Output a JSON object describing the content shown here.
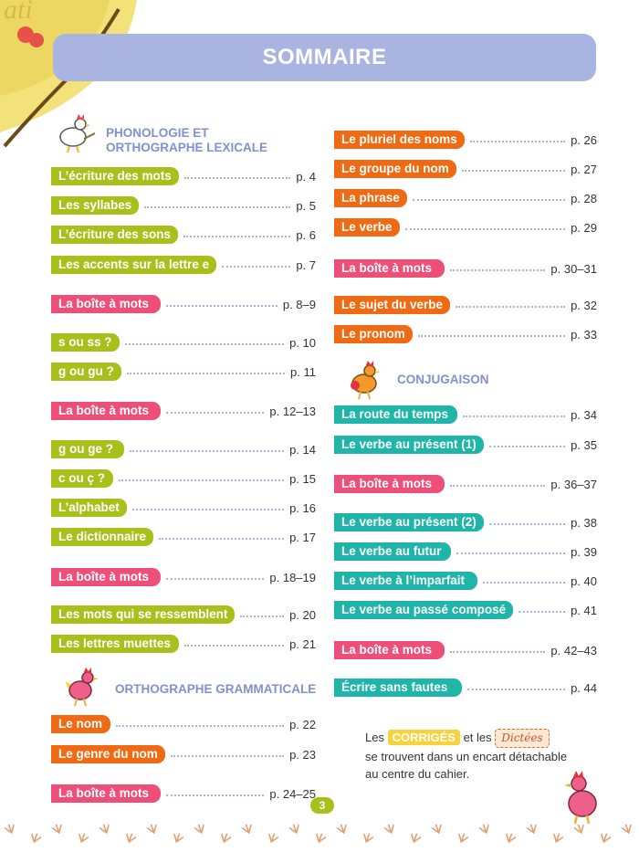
{
  "header": {
    "title": "SOMMAIRE"
  },
  "colors": {
    "green": "#a9bf1b",
    "pink": "#ee4f79",
    "orange": "#ef6a12",
    "teal": "#1fb5a9",
    "banner": "#aab4e0",
    "section_title": "#8190cf"
  },
  "sections": {
    "phonologie": {
      "line1": "PHONOLOGIE ET",
      "line2": "ORTHOGRAPHE LEXICALE",
      "icon": "rooster-icon"
    },
    "orthographe_grammaticale": {
      "title": "ORTHOGRAPHE GRAMMATICALE",
      "icon": "hen-icon"
    },
    "conjugaison": {
      "title": "CONJUGAISON",
      "icon": "rooster-icon"
    }
  },
  "left_entries": [
    {
      "label": "L’écriture des mots",
      "page": "p. 4",
      "color": "green"
    },
    {
      "label": "Les syllabes",
      "page": "p. 5",
      "color": "green"
    },
    {
      "label": "L’écriture des sons",
      "page": "p. 6",
      "color": "green"
    },
    {
      "label": "Les accents sur la lettre e",
      "page": "p. 7",
      "color": "green"
    },
    {
      "label": "La boîte à mots",
      "page": "p. 8–9",
      "color": "pink"
    },
    {
      "label": "s ou ss ?",
      "page": "p. 10",
      "color": "green"
    },
    {
      "label": "g ou gu ?",
      "page": "p. 11",
      "color": "green"
    },
    {
      "label": "La boîte à mots",
      "page": "p. 12–13",
      "color": "pink"
    },
    {
      "label": "g ou ge ?",
      "page": "p. 14",
      "color": "green"
    },
    {
      "label": "c ou ç ?",
      "page": "p. 15",
      "color": "green"
    },
    {
      "label": "L’alphabet",
      "page": "p. 16",
      "color": "green"
    },
    {
      "label": "Le dictionnaire",
      "page": "p. 17",
      "color": "green"
    },
    {
      "label": "La boîte à mots",
      "page": "p. 18–19",
      "color": "pink"
    },
    {
      "label": "Les mots qui se ressemblent",
      "page": "p. 20",
      "color": "green"
    },
    {
      "label": "Les lettres muettes",
      "page": "p. 21",
      "color": "green"
    },
    {
      "label": "Le nom",
      "page": "p. 22",
      "color": "orange"
    },
    {
      "label": "Le genre du nom",
      "page": "p. 23",
      "color": "orange"
    },
    {
      "label": "La boîte à mots",
      "page": "p. 24–25",
      "color": "pink"
    }
  ],
  "right_entries": [
    {
      "label": "Le pluriel des noms",
      "page": "p. 26",
      "color": "orange"
    },
    {
      "label": "Le groupe du nom",
      "page": "p. 27",
      "color": "orange"
    },
    {
      "label": "La phrase",
      "page": "p. 28",
      "color": "orange"
    },
    {
      "label": "Le verbe",
      "page": "p. 29",
      "color": "orange"
    },
    {
      "label": "La boîte à mots",
      "page": "p. 30–31",
      "color": "pink"
    },
    {
      "label": "Le sujet du verbe",
      "page": "p. 32",
      "color": "orange"
    },
    {
      "label": "Le pronom",
      "page": "p. 33",
      "color": "orange"
    },
    {
      "label": "La route du temps",
      "page": "p. 34",
      "color": "teal"
    },
    {
      "label": "Le verbe au présent (1)",
      "page": "p. 35",
      "color": "teal"
    },
    {
      "label": "La boîte à mots",
      "page": "p. 36–37",
      "color": "pink"
    },
    {
      "label": "Le verbe au présent (2)",
      "page": "p. 38",
      "color": "teal"
    },
    {
      "label": "Le verbe au futur",
      "page": "p. 39",
      "color": "teal"
    },
    {
      "label": "Le verbe à l’imparfait",
      "page": "p. 40",
      "color": "teal"
    },
    {
      "label": "Le verbe au passé composé",
      "page": "p. 41",
      "color": "teal"
    },
    {
      "label": "La boîte à mots",
      "page": "p. 42–43",
      "color": "pink"
    },
    {
      "label": "Écrire sans fautes",
      "page": "p. 44",
      "color": "teal"
    }
  ],
  "note": {
    "prefix": "Les",
    "corriges": "CORRIGÉS",
    "middle": "et les",
    "dictees": "Dictées",
    "rest": "se trouvent dans un encart détachable au centre du cahier."
  },
  "footer": {
    "page_number": "3"
  }
}
